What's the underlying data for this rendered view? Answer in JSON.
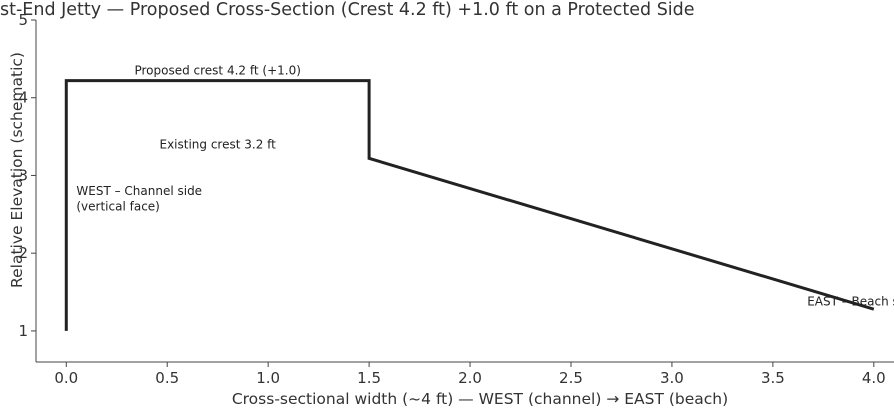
{
  "chart_data": {
    "type": "line",
    "title": "st-End Jetty — Proposed Cross-Section (Crest 4.2 ft) +1.0 ft on a Protected Side",
    "xlabel": "Cross-sectional width (~4 ft) — WEST (channel) → EAST (beach)",
    "ylabel": "Relative Elevation (schematic)",
    "xlim": [
      -0.15,
      4.1
    ],
    "ylim": [
      0.6,
      5.0
    ],
    "x_ticks": [
      "0.0",
      "0.5",
      "1.0",
      "1.5",
      "2.0",
      "2.5",
      "3.0",
      "3.5",
      "4.0"
    ],
    "y_ticks": [
      "1",
      "2",
      "3",
      "4",
      "5"
    ],
    "grid": false,
    "series": [
      {
        "x": [
          0.0,
          0.0,
          1.5,
          1.5,
          4.0
        ],
        "y": [
          1.0,
          4.22,
          4.22,
          3.22,
          1.28
        ],
        "color": "#222222"
      }
    ],
    "annotations": [
      {
        "text": "Proposed crest 4.2 ft (+1.0)",
        "x": 0.75,
        "y": 4.3
      },
      {
        "text": "Existing crest 3.2 ft",
        "x": 0.75,
        "y": 3.35
      },
      {
        "text": "WEST – Channel side",
        "x": 0.05,
        "y": 2.75
      },
      {
        "text": "(vertical face)",
        "x": 0.05,
        "y": 2.55
      },
      {
        "text": "EAST – Beach side",
        "x": 3.67,
        "y": 1.33
      }
    ]
  }
}
